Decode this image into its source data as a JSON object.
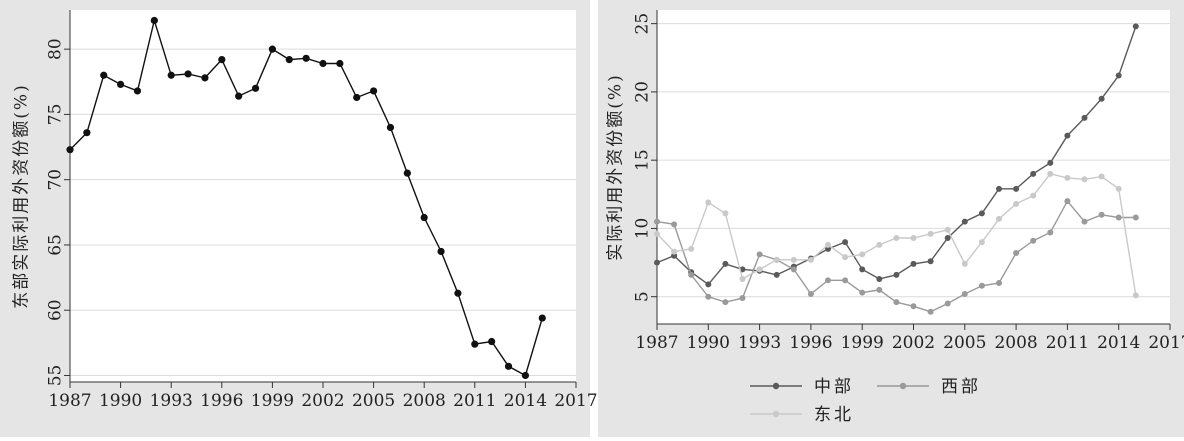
{
  "chart_data": [
    {
      "type": "line",
      "ylabel": "东部实际利用外资份额(%)",
      "xlabel": "",
      "xlim": [
        1987,
        2017
      ],
      "ylim": [
        54.5,
        83
      ],
      "x_ticks": [
        "1987",
        "1990",
        "1993",
        "1996",
        "1999",
        "2002",
        "2005",
        "2008",
        "2011",
        "2014",
        "2017"
      ],
      "y_ticks": [
        "55",
        "60",
        "65",
        "70",
        "75",
        "80"
      ],
      "grid": true,
      "series": [
        {
          "name": "",
          "color": "#111111",
          "x": [
            1987,
            1988,
            1989,
            1990,
            1991,
            1992,
            1993,
            1994,
            1995,
            1996,
            1997,
            1998,
            1999,
            2000,
            2001,
            2002,
            2003,
            2004,
            2005,
            2006,
            2007,
            2008,
            2009,
            2010,
            2011,
            2012,
            2013,
            2014,
            2015
          ],
          "y": [
            72.3,
            73.6,
            78.0,
            77.3,
            76.8,
            82.2,
            78.0,
            78.1,
            77.8,
            79.2,
            76.4,
            77.0,
            80.0,
            79.2,
            79.3,
            78.9,
            78.9,
            76.3,
            76.8,
            74.0,
            70.5,
            67.1,
            64.5,
            61.3,
            57.4,
            57.6,
            55.7,
            55.0,
            59.4
          ]
        }
      ]
    },
    {
      "type": "line",
      "ylabel": "实际利用外资份额(%)",
      "xlabel": "",
      "xlim": [
        1987,
        2017
      ],
      "ylim": [
        3,
        26
      ],
      "x_ticks": [
        "1987",
        "1990",
        "1993",
        "1996",
        "1999",
        "2002",
        "2005",
        "2008",
        "2011",
        "2014",
        "2017"
      ],
      "y_ticks": [
        "5",
        "10",
        "15",
        "20",
        "25"
      ],
      "grid": true,
      "legend": "bottom",
      "series": [
        {
          "name": "中部",
          "color": "#5a5a5a",
          "x": [
            1987,
            1988,
            1989,
            1990,
            1991,
            1992,
            1993,
            1994,
            1995,
            1996,
            1997,
            1998,
            1999,
            2000,
            2001,
            2002,
            2003,
            2004,
            2005,
            2006,
            2007,
            2008,
            2009,
            2010,
            2011,
            2012,
            2013,
            2014,
            2015
          ],
          "y": [
            7.5,
            8.0,
            6.8,
            5.9,
            7.4,
            7.0,
            6.9,
            6.6,
            7.2,
            7.8,
            8.5,
            9.0,
            7.0,
            6.3,
            6.6,
            7.4,
            7.6,
            9.3,
            10.5,
            11.1,
            12.9,
            12.9,
            14.0,
            14.8,
            16.8,
            18.1,
            19.5,
            21.2,
            24.8
          ]
        },
        {
          "name": "西部",
          "color": "#9a9a9a",
          "x": [
            1987,
            1988,
            1989,
            1990,
            1991,
            1992,
            1993,
            1994,
            1995,
            1996,
            1997,
            1998,
            1999,
            2000,
            2001,
            2002,
            2003,
            2004,
            2005,
            2006,
            2007,
            2008,
            2009,
            2010,
            2011,
            2012,
            2013,
            2014,
            2015
          ],
          "y": [
            10.5,
            10.3,
            6.6,
            5.0,
            4.6,
            4.9,
            8.1,
            7.7,
            7.0,
            5.2,
            6.2,
            6.2,
            5.3,
            5.5,
            4.6,
            4.3,
            3.9,
            4.5,
            5.2,
            5.8,
            6.0,
            8.2,
            9.1,
            9.7,
            12.0,
            10.5,
            11.0,
            10.8,
            10.8
          ]
        },
        {
          "name": "东北",
          "color": "#c9c9c9",
          "x": [
            1987,
            1988,
            1989,
            1990,
            1991,
            1992,
            1993,
            1994,
            1995,
            1996,
            1997,
            1998,
            1999,
            2000,
            2001,
            2002,
            2003,
            2004,
            2005,
            2006,
            2007,
            2008,
            2009,
            2010,
            2011,
            2012,
            2013,
            2014,
            2015
          ],
          "y": [
            9.6,
            8.3,
            8.5,
            11.9,
            11.1,
            6.3,
            7.0,
            7.7,
            7.7,
            7.7,
            8.8,
            7.9,
            8.1,
            8.8,
            9.3,
            9.3,
            9.6,
            9.9,
            7.4,
            9.0,
            10.7,
            11.8,
            12.4,
            14.0,
            13.7,
            13.6,
            13.8,
            12.9,
            5.1
          ]
        }
      ]
    }
  ]
}
